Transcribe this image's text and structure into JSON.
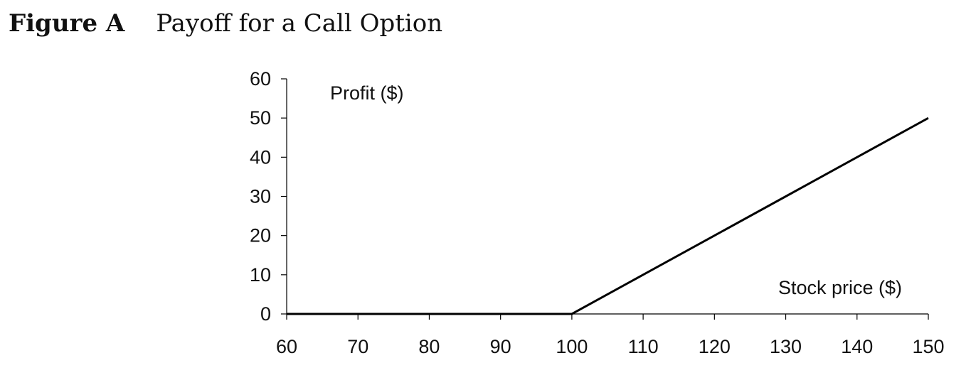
{
  "figure": {
    "label": "Figure A",
    "title": "Payoff for a Call Option"
  },
  "chart_data": {
    "type": "line",
    "title": "Payoff for a Call Option",
    "xlabel": "Stock price ($)",
    "ylabel": "Profit ($)",
    "xlim": [
      60,
      150
    ],
    "ylim": [
      0,
      60
    ],
    "x_ticks": [
      60,
      70,
      80,
      90,
      100,
      110,
      120,
      130,
      140,
      150
    ],
    "y_ticks": [
      0,
      10,
      20,
      30,
      40,
      50,
      60
    ],
    "grid": false,
    "legend": "none",
    "series": [
      {
        "x": [
          60,
          70,
          80,
          90,
          100,
          110,
          120,
          130,
          140,
          150
        ],
        "y": [
          0,
          0,
          0,
          0,
          0,
          10,
          20,
          30,
          40,
          50
        ],
        "color": "#000000"
      }
    ]
  }
}
